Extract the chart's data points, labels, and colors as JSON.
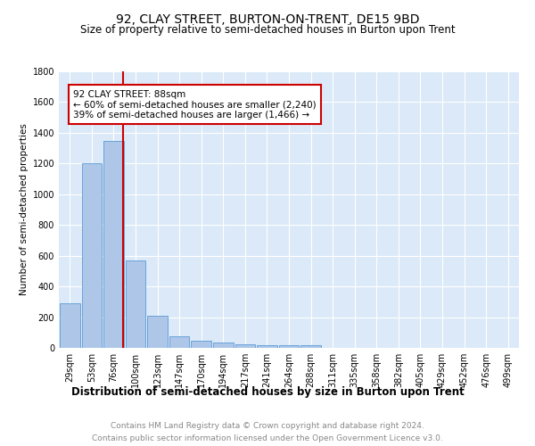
{
  "title": "92, CLAY STREET, BURTON-ON-TRENT, DE15 9BD",
  "subtitle": "Size of property relative to semi-detached houses in Burton upon Trent",
  "xlabel": "Distribution of semi-detached houses by size in Burton upon Trent",
  "ylabel": "Number of semi-detached properties",
  "footnote1": "Contains HM Land Registry data © Crown copyright and database right 2024.",
  "footnote2": "Contains public sector information licensed under the Open Government Licence v3.0.",
  "bins": [
    "29sqm",
    "53sqm",
    "76sqm",
    "100sqm",
    "123sqm",
    "147sqm",
    "170sqm",
    "194sqm",
    "217sqm",
    "241sqm",
    "264sqm",
    "288sqm",
    "311sqm",
    "335sqm",
    "358sqm",
    "382sqm",
    "405sqm",
    "429sqm",
    "452sqm",
    "476sqm",
    "499sqm"
  ],
  "values": [
    290,
    1200,
    1350,
    570,
    210,
    75,
    48,
    32,
    22,
    15,
    15,
    15,
    0,
    0,
    0,
    0,
    0,
    0,
    0,
    0,
    0
  ],
  "bar_color": "#aec6e8",
  "bar_edge_color": "#5b9bd5",
  "red_line_x": 2.42,
  "annotation_text_line1": "92 CLAY STREET: 88sqm",
  "annotation_text_line2": "← 60% of semi-detached houses are smaller (2,240)",
  "annotation_text_line3": "39% of semi-detached houses are larger (1,466) →",
  "annotation_box_color": "#ffffff",
  "annotation_box_edge_color": "#cc0000",
  "red_line_color": "#cc0000",
  "ylim": [
    0,
    1800
  ],
  "yticks": [
    0,
    200,
    400,
    600,
    800,
    1000,
    1200,
    1400,
    1600,
    1800
  ],
  "background_color": "#dce9f8",
  "title_fontsize": 10,
  "subtitle_fontsize": 8.5,
  "xlabel_fontsize": 8.5,
  "ylabel_fontsize": 7.5,
  "tick_fontsize": 7,
  "annotation_fontsize": 7.5,
  "footnote_fontsize": 6.5
}
